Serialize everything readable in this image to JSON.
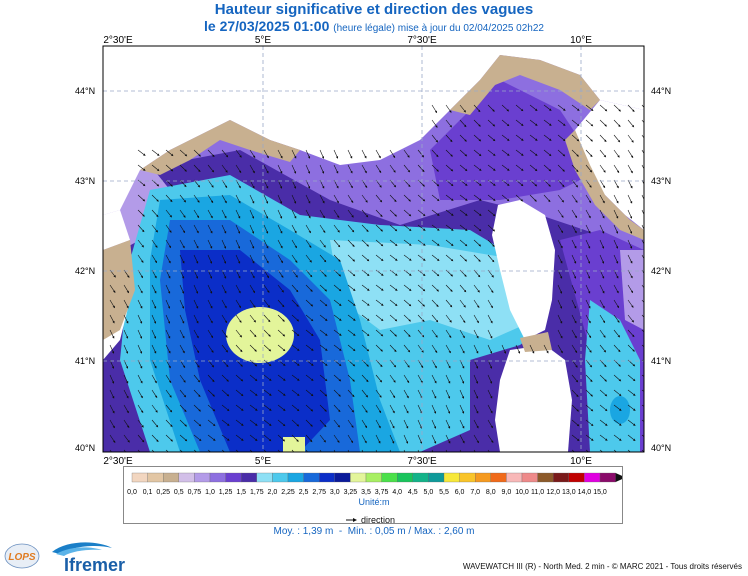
{
  "title": {
    "line1": "Hauteur significative et direction des vagues",
    "date": "le 27/03/2025 01:00",
    "note": "(heure légale) mise à jour du 02/04/2025 02h22"
  },
  "axes": {
    "lon_ticks": [
      "2°30'E",
      "5°E",
      "7°30'E",
      "10°E"
    ],
    "lat_ticks": [
      "44°N",
      "43°N",
      "42°N",
      "41°N",
      "40°N"
    ]
  },
  "legend": {
    "unit": "Unité:m",
    "direction_label": "direction",
    "levels": [
      "0,0",
      "0,1",
      "0,25",
      "0,5",
      "0,75",
      "1,0",
      "1,25",
      "1,5",
      "1,75",
      "2,0",
      "2,25",
      "2,5",
      "2,75",
      "3,0",
      "3,25",
      "3,5",
      "3,75",
      "4,0",
      "4,5",
      "5,0",
      "5,5",
      "6,0",
      "7,0",
      "8,0",
      "9,0",
      "10,0",
      "11,0",
      "12,0",
      "13,0",
      "14,0",
      "15,0"
    ],
    "colors": [
      "#f2d6c0",
      "#e2c6a4",
      "#c8b090",
      "#d2bfe8",
      "#b39be8",
      "#8d6fe0",
      "#6a3fd0",
      "#4a2da8",
      "#8ee0f5",
      "#4dc9ec",
      "#1aa6e2",
      "#1869da",
      "#0b2ec8",
      "#0a1a9a",
      "#e3f59a",
      "#a8ef63",
      "#4be04a",
      "#19c45c",
      "#13b389",
      "#0e9a9a",
      "#f7e83a",
      "#f9c42a",
      "#f59a20",
      "#f06a1a",
      "#f8b8b8",
      "#ee8a8a",
      "#8c5a2a",
      "#7a1a1a",
      "#c00000",
      "#e000e0",
      "#8a0a6a"
    ]
  },
  "stats": {
    "moy": "Moy. : 1,39 m",
    "min": "Min. : 0,05 m",
    "max": "Max. : 2,60 m"
  },
  "footer": "WAVEWATCH III (R) - North Med. 2 min - © MARC 2021 - Tous droits réservés",
  "logos": {
    "lops": "LOPS",
    "ifremer": "Ifremer"
  },
  "palette": {
    "title_color": "#1565c0",
    "land": "#ffffff",
    "coast_land": "#c8b090"
  }
}
